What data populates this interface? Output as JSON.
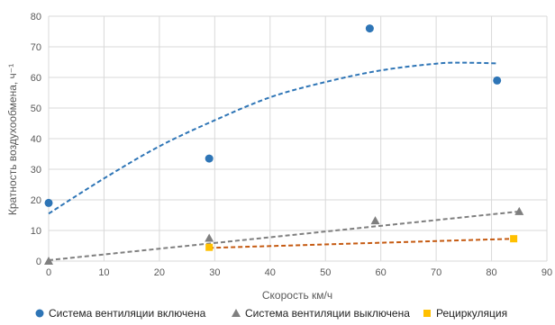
{
  "chart_data": {
    "type": "scatter",
    "xlabel": "Скорость км/ч",
    "ylabel": "Кратность воздухообмена, ч⁻¹",
    "xlim": [
      0,
      90
    ],
    "ylim": [
      0,
      80
    ],
    "xticks": [
      0,
      10,
      20,
      30,
      40,
      50,
      60,
      70,
      80,
      90
    ],
    "yticks": [
      0,
      10,
      20,
      30,
      40,
      50,
      60,
      70,
      80
    ],
    "grid": true,
    "legend_position": "bottom",
    "series": [
      {
        "name": "Система вентиляции включена",
        "marker": "circle",
        "color": "#2E75B6",
        "trend_color": "#2E75B6",
        "x": [
          0,
          29,
          58,
          81
        ],
        "y": [
          19,
          33.5,
          76,
          59
        ],
        "trend": {
          "kind": "polynomial",
          "x_range": [
            0,
            81
          ],
          "points": [
            [
              0,
              15.5
            ],
            [
              10,
              27
            ],
            [
              20,
              37.5
            ],
            [
              30,
              46
            ],
            [
              40,
              53.5
            ],
            [
              50,
              58.5
            ],
            [
              60,
              62.3
            ],
            [
              70,
              64.5
            ],
            [
              75,
              64.8
            ],
            [
              81,
              64.6
            ]
          ]
        }
      },
      {
        "name": "Система вентиляции выключена",
        "marker": "triangle",
        "color": "#7F7F7F",
        "trend_color": "#7F7F7F",
        "x": [
          0,
          29,
          59,
          85
        ],
        "y": [
          0,
          7.5,
          13.2,
          16.2
        ],
        "trend": {
          "kind": "linear",
          "x_range": [
            0,
            85
          ],
          "points": [
            [
              0,
              0.3
            ],
            [
              85,
              16.2
            ]
          ]
        }
      },
      {
        "name": "Рециркуляция",
        "marker": "square",
        "color": "#FFC000",
        "trend_color": "#C55A11",
        "x": [
          29,
          84
        ],
        "y": [
          4.5,
          7.3
        ],
        "trend": {
          "kind": "linear",
          "x_range": [
            29,
            84
          ],
          "points": [
            [
              29,
              4.3
            ],
            [
              84,
              7.3
            ]
          ]
        }
      }
    ]
  }
}
